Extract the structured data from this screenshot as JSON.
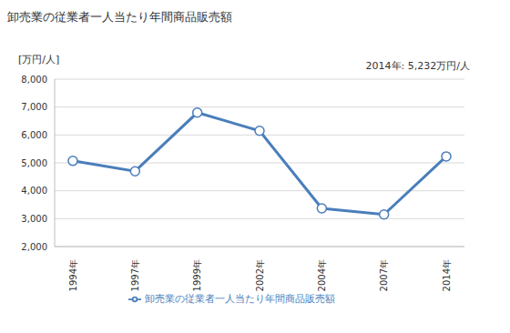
{
  "chart_data": {
    "type": "line",
    "title": "卸売業の従業者一人当たり年間商品販売額",
    "y_label": "[万円/人]",
    "annotation": "2014年: 5,232万円/人",
    "categories": [
      "1994年",
      "1997年",
      "1999年",
      "2002年",
      "2004年",
      "2007年",
      "2014年"
    ],
    "series": [
      {
        "name": "卸売業の従業者一人当たり年間商品販売額",
        "color": "#4a7ebb",
        "marker": "circle",
        "values": [
          5070,
          4700,
          6800,
          6150,
          3370,
          3150,
          5232
        ]
      }
    ],
    "ylim": [
      2000,
      8000
    ],
    "yticks": [
      {
        "value": 2000,
        "label": "2,000"
      },
      {
        "value": 3000,
        "label": "3,000"
      },
      {
        "value": 4000,
        "label": "4,000"
      },
      {
        "value": 5000,
        "label": "5,000"
      },
      {
        "value": 6000,
        "label": "6,000"
      },
      {
        "value": 7000,
        "label": "7,000"
      },
      {
        "value": 8000,
        "label": "8,000"
      }
    ],
    "grid": true,
    "legend": "bottom"
  }
}
